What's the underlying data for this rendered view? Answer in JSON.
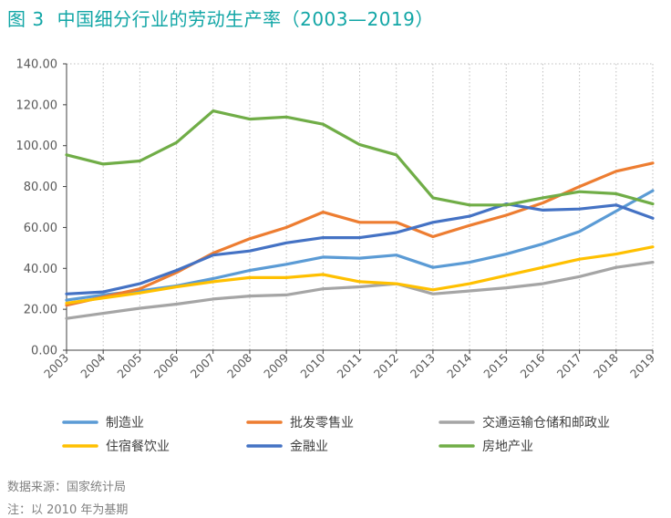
{
  "figure": {
    "number_label": "图 3",
    "title": "中国细分行业的劳动生产率（2003—2019）"
  },
  "chart_data": {
    "type": "line",
    "title": "中国细分行业的劳动生产率（2003—2019）",
    "xlabel": "",
    "ylabel": "",
    "ylim": [
      0,
      140
    ],
    "y_ticks": [
      "0.00",
      "20.00",
      "40.00",
      "60.00",
      "80.00",
      "100.00",
      "120.00",
      "140.00"
    ],
    "categories": [
      "2003",
      "2004",
      "2005",
      "2006",
      "2007",
      "2008",
      "2009",
      "2010",
      "2011",
      "2012",
      "2013",
      "2014",
      "2015",
      "2016",
      "2017",
      "2018",
      "2019"
    ],
    "grid": "vertical-dotted",
    "legend_position": "bottom",
    "series": [
      {
        "name": "制造业",
        "color": "#5b9bd5",
        "values": [
          24.5,
          27,
          29,
          31.5,
          35,
          39,
          42,
          45.5,
          45,
          46.5,
          40.5,
          43,
          47,
          52,
          58,
          68,
          78
        ]
      },
      {
        "name": "批发零售业",
        "color": "#ed7d31",
        "values": [
          22,
          26,
          30,
          38,
          47.5,
          54.5,
          60,
          67.5,
          62.5,
          62.5,
          55.5,
          61,
          66,
          72,
          80,
          87.5,
          91.5
        ]
      },
      {
        "name": "交通运输仓储和邮政业",
        "color": "#a5a5a5",
        "values": [
          15.5,
          18,
          20.5,
          22.5,
          25,
          26.5,
          27,
          30,
          31,
          32.5,
          27.5,
          29,
          30.5,
          32.5,
          36,
          40.5,
          43
        ]
      },
      {
        "name": "住宿餐饮业",
        "color": "#ffc000",
        "values": [
          23,
          25.5,
          28,
          31,
          33.5,
          35.5,
          35.5,
          37,
          33.5,
          32.5,
          29.5,
          32.5,
          36.5,
          40.5,
          44.5,
          47,
          50.5
        ]
      },
      {
        "name": "金融业",
        "color": "#4472c4",
        "values": [
          27.5,
          28.5,
          32.5,
          39,
          46.5,
          48.5,
          52.5,
          55,
          55,
          57.5,
          62.5,
          65.5,
          71.5,
          68.5,
          69,
          71,
          64.5
        ]
      },
      {
        "name": "房地产业",
        "color": "#70ad47",
        "values": [
          95.5,
          91,
          92.5,
          101.5,
          117,
          113,
          114,
          110.5,
          100.5,
          95.5,
          74.5,
          71,
          71,
          74.5,
          77.5,
          76.5,
          71.5
        ]
      }
    ]
  },
  "notes": {
    "source": "数据来源：国家统计局",
    "base_year": "注：以 2010 年为基期"
  }
}
